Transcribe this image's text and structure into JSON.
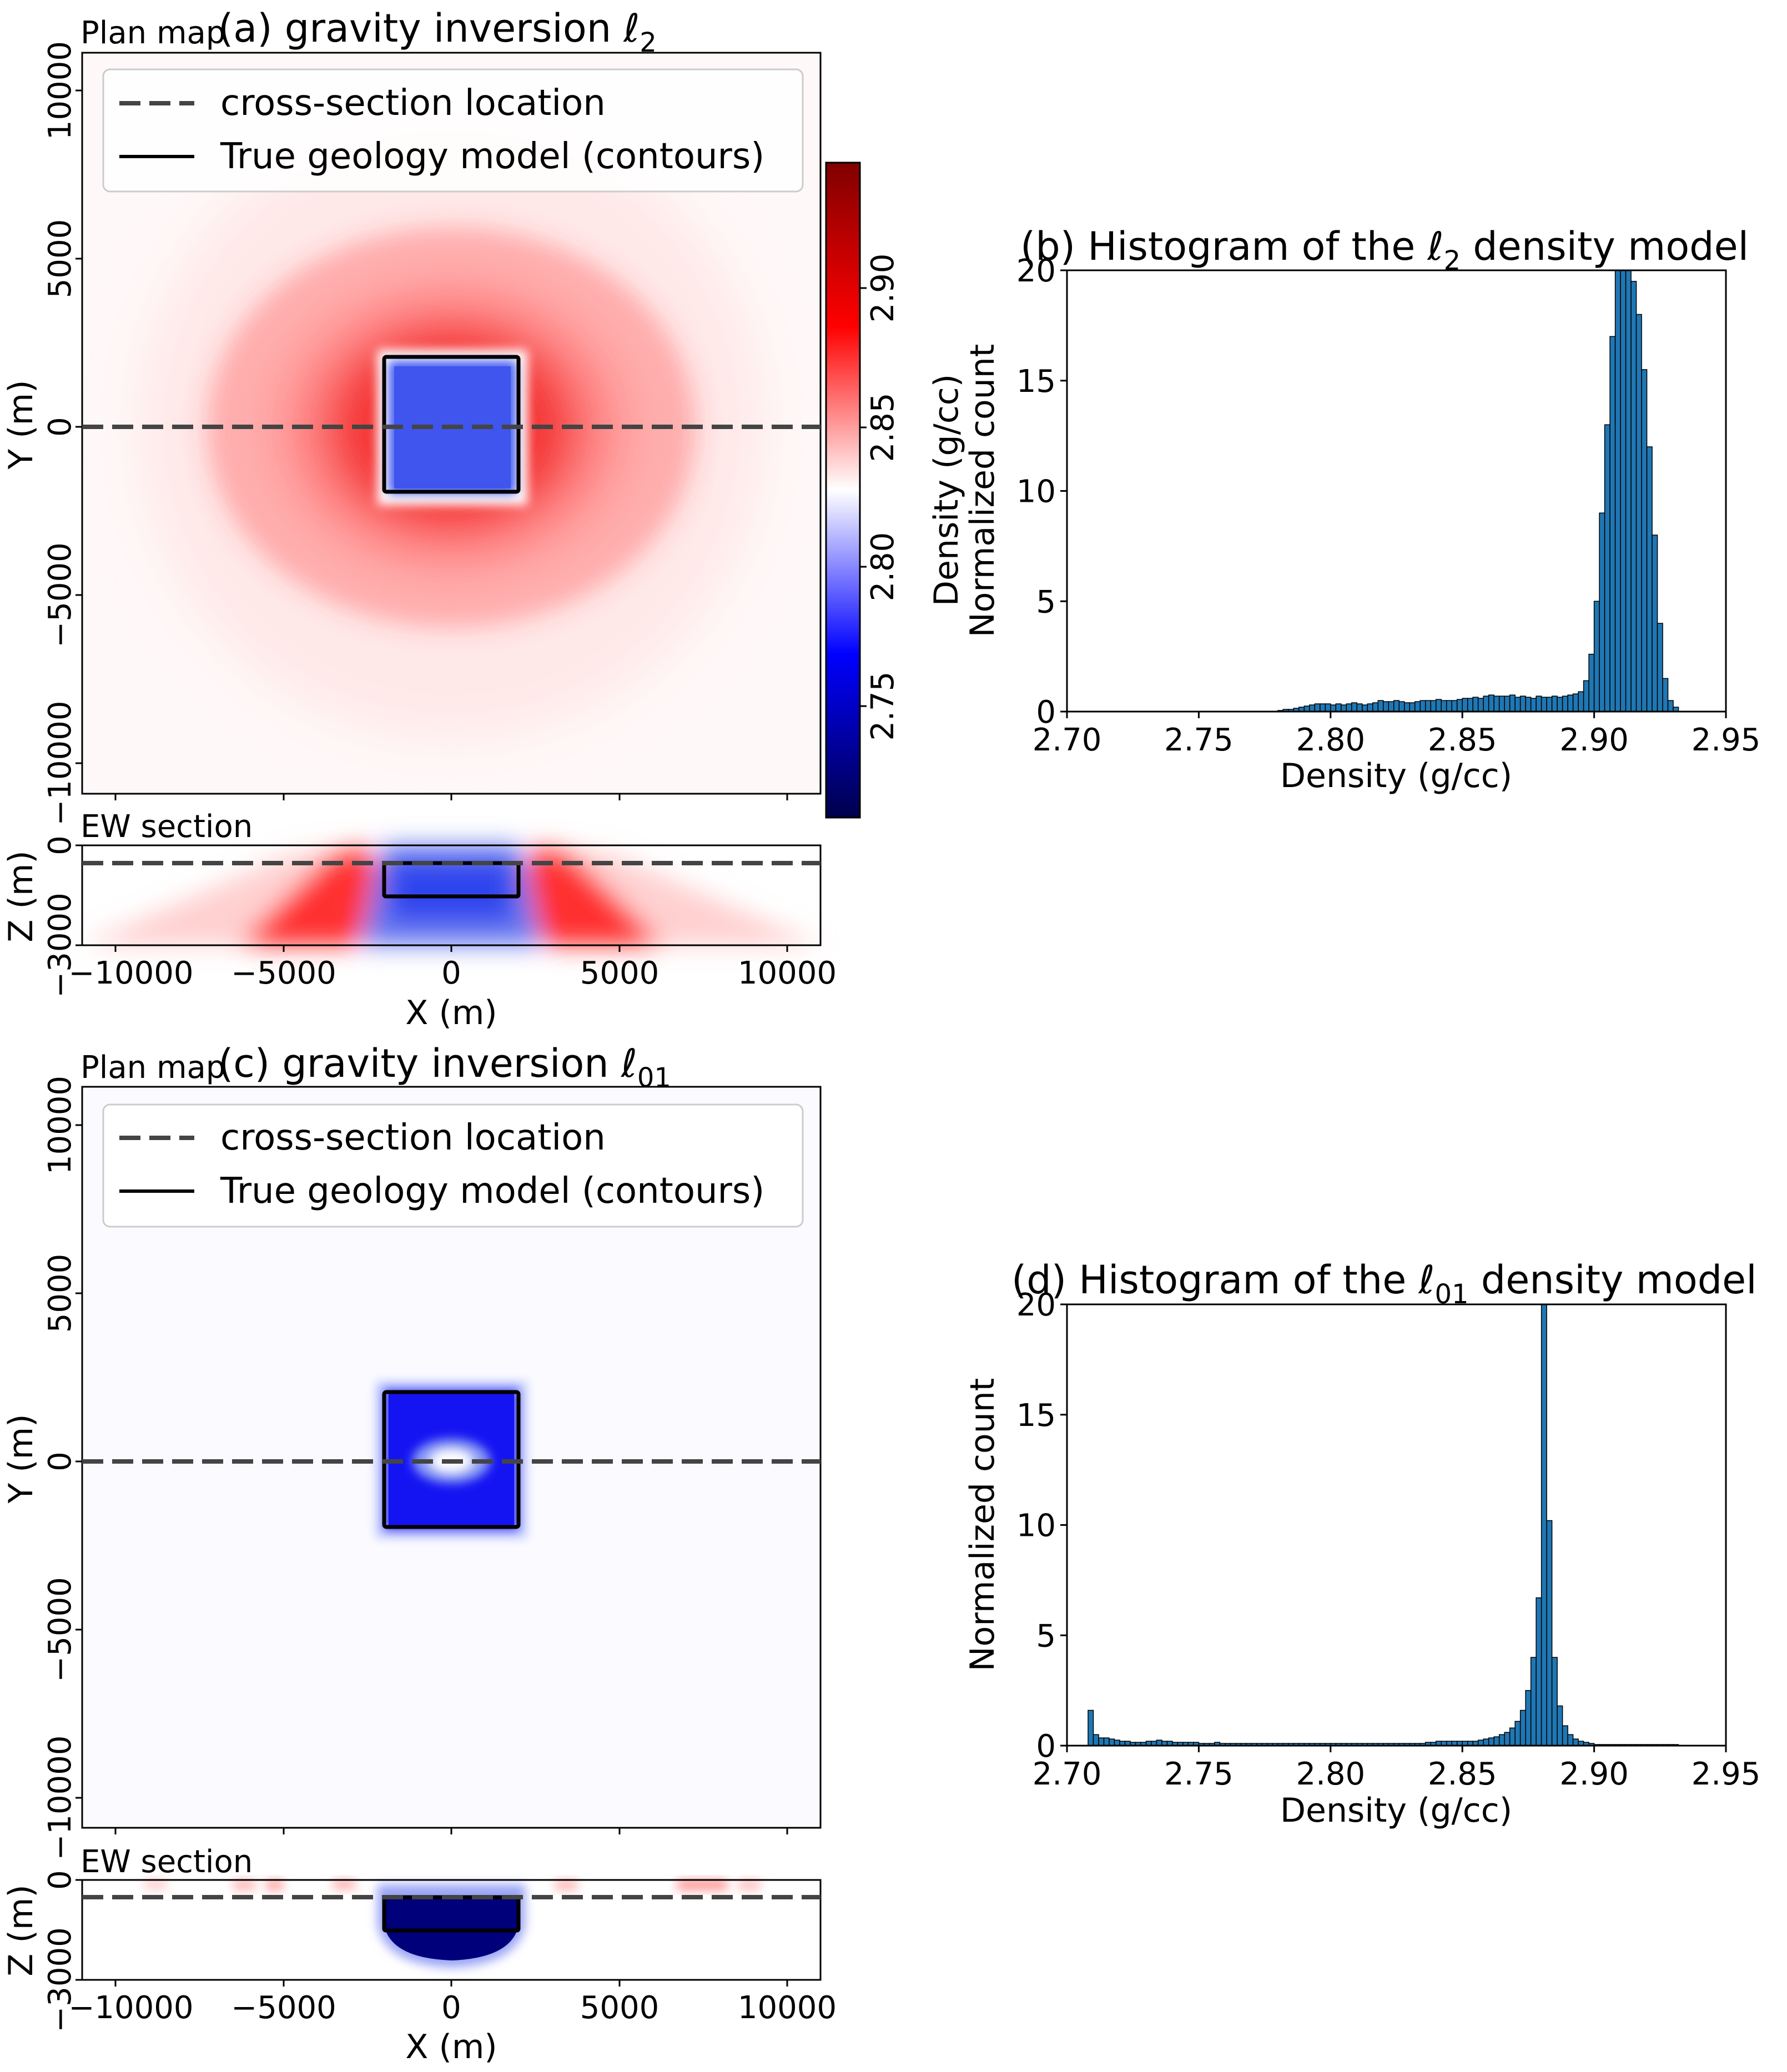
{
  "panels": {
    "a": {
      "title_prefix": "(a) gravity inversion ",
      "title_sym": "ℓ",
      "title_sub": "2",
      "plan_label": "Plan map",
      "section_label": "EW section",
      "legend": [
        "cross-section location",
        "True geology model (contours)"
      ],
      "ylabel": "Y (m)",
      "zlabel": "Z (m)",
      "xlabel": "X (m)",
      "yticks": [
        "10000",
        "5000",
        "0",
        "−5000",
        "−10000"
      ],
      "zticks": [
        "0",
        "−3000"
      ],
      "xticks": [
        "−10000",
        "−5000",
        "0",
        "5000",
        "10000"
      ]
    },
    "c": {
      "title_prefix": "(c) gravity inversion ",
      "title_sym": "ℓ",
      "title_sub": "01",
      "plan_label": "Plan map",
      "section_label": "EW section",
      "legend": [
        "cross-section location",
        "True geology model (contours)"
      ],
      "ylabel": "Y (m)",
      "zlabel": "Z (m)",
      "xlabel": "X (m)",
      "yticks": [
        "10000",
        "5000",
        "0",
        "−5000",
        "−10000"
      ],
      "zticks": [
        "0",
        "−3000"
      ],
      "xticks": [
        "−10000",
        "−5000",
        "0",
        "5000",
        "10000"
      ]
    },
    "colorbar": {
      "label": "Density (g/cc)",
      "ticks": [
        "2.75",
        "2.80",
        "2.85",
        "2.90"
      ],
      "tick_values": [
        2.75,
        2.8,
        2.85,
        2.9
      ],
      "range": [
        2.71,
        2.945
      ],
      "colors": [
        "#00004c",
        "#0000ff",
        "#ffffff",
        "#ff0000",
        "#800000"
      ]
    }
  },
  "chart_data": [
    {
      "type": "heatmap",
      "id": "a-plan",
      "title": "(a) gravity inversion ℓ2",
      "xlabel": "X (m)",
      "ylabel": "Y (m)",
      "xlim": [
        -11000,
        11000
      ],
      "ylim": [
        -11000,
        11000
      ],
      "cross_section_y": 0,
      "true_model_contour": {
        "x": [
          -2000,
          2000
        ],
        "y": [
          -2000,
          2000
        ]
      }
    },
    {
      "type": "heatmap",
      "id": "a-section",
      "xlabel": "X (m)",
      "ylabel": "Z (m)",
      "xlim": [
        -11000,
        11000
      ],
      "ylim": [
        -3000,
        0
      ],
      "cross_section_z": -500,
      "true_model_contour": {
        "x": [
          -2000,
          2000
        ],
        "z": [
          -1500,
          -500
        ]
      }
    },
    {
      "type": "bar",
      "id": "b-hist",
      "title": "(b) Histogram of the ℓ2 density model",
      "title_prefix": "(b) Histogram of the ",
      "title_sub": "2",
      "title_suffix": " density model",
      "xlabel": "Density (g/cc)",
      "ylabel": "Normalized count",
      "xlim": [
        2.7,
        2.95
      ],
      "ylim": [
        0,
        20
      ],
      "xticks": [
        2.7,
        2.75,
        2.8,
        2.85,
        2.9,
        2.95
      ],
      "yticks": [
        0,
        5,
        10,
        15,
        20
      ],
      "bins": {
        "start": 2.78,
        "width": 0.002,
        "values": [
          0.05,
          0.1,
          0.1,
          0.15,
          0.2,
          0.25,
          0.3,
          0.35,
          0.35,
          0.35,
          0.3,
          0.35,
          0.3,
          0.35,
          0.4,
          0.35,
          0.3,
          0.35,
          0.4,
          0.5,
          0.45,
          0.45,
          0.5,
          0.45,
          0.4,
          0.4,
          0.45,
          0.5,
          0.5,
          0.5,
          0.55,
          0.5,
          0.5,
          0.5,
          0.55,
          0.6,
          0.6,
          0.65,
          0.6,
          0.7,
          0.75,
          0.7,
          0.7,
          0.7,
          0.75,
          0.65,
          0.7,
          0.65,
          0.6,
          0.7,
          0.65,
          0.65,
          0.7,
          0.65,
          0.7,
          0.75,
          0.8,
          0.9,
          1.4,
          2.6,
          5.0,
          9.0,
          13.0,
          17.0,
          20.0,
          20.0,
          20.0,
          19.5,
          18.0,
          15.5,
          12.0,
          8.0,
          4.0,
          1.5,
          0.5,
          0.2
        ]
      }
    },
    {
      "type": "heatmap",
      "id": "c-plan",
      "title": "(c) gravity inversion ℓ01",
      "xlabel": "X (m)",
      "ylabel": "Y (m)",
      "xlim": [
        -11000,
        11000
      ],
      "ylim": [
        -11000,
        11000
      ],
      "cross_section_y": 0,
      "true_model_contour": {
        "x": [
          -2000,
          2000
        ],
        "y": [
          -2000,
          2000
        ]
      }
    },
    {
      "type": "heatmap",
      "id": "c-section",
      "xlabel": "X (m)",
      "ylabel": "Z (m)",
      "xlim": [
        -11000,
        11000
      ],
      "ylim": [
        -3000,
        0
      ],
      "cross_section_z": -500,
      "true_model_contour": {
        "x": [
          -2000,
          2000
        ],
        "z": [
          -1500,
          -500
        ]
      }
    },
    {
      "type": "bar",
      "id": "d-hist",
      "title": "(d) Histogram of the ℓ01 density model",
      "title_prefix": "(d) Histogram of the ",
      "title_sub": "01",
      "title_suffix": " density model",
      "xlabel": "Density (g/cc)",
      "ylabel": "Normalized count",
      "xlim": [
        2.7,
        2.95
      ],
      "ylim": [
        0,
        20
      ],
      "xticks": [
        2.7,
        2.75,
        2.8,
        2.85,
        2.9,
        2.95
      ],
      "yticks": [
        0,
        5,
        10,
        15,
        20
      ],
      "bins": {
        "start": 2.708,
        "width": 0.002,
        "values": [
          1.6,
          0.5,
          0.35,
          0.35,
          0.3,
          0.25,
          0.2,
          0.2,
          0.15,
          0.15,
          0.15,
          0.2,
          0.2,
          0.25,
          0.2,
          0.2,
          0.15,
          0.15,
          0.15,
          0.15,
          0.15,
          0.1,
          0.1,
          0.1,
          0.15,
          0.1,
          0.1,
          0.1,
          0.1,
          0.1,
          0.1,
          0.1,
          0.1,
          0.1,
          0.1,
          0.1,
          0.1,
          0.1,
          0.1,
          0.1,
          0.1,
          0.1,
          0.1,
          0.1,
          0.1,
          0.1,
          0.1,
          0.1,
          0.1,
          0.1,
          0.1,
          0.1,
          0.1,
          0.1,
          0.1,
          0.1,
          0.1,
          0.1,
          0.1,
          0.1,
          0.1,
          0.1,
          0.1,
          0.1,
          0.15,
          0.15,
          0.2,
          0.2,
          0.2,
          0.2,
          0.2,
          0.2,
          0.2,
          0.2,
          0.25,
          0.3,
          0.35,
          0.4,
          0.5,
          0.6,
          0.8,
          1.1,
          1.6,
          2.5,
          4.0,
          6.7,
          20.0,
          10.2,
          4.0,
          1.8,
          0.9,
          0.5,
          0.3,
          0.2,
          0.15,
          0.1,
          0.05,
          0.05,
          0.05,
          0.05,
          0.05,
          0.05,
          0.05,
          0.05,
          0.05,
          0.05,
          0.05,
          0.05,
          0.05,
          0.05,
          0.05,
          0.05
        ]
      }
    }
  ]
}
